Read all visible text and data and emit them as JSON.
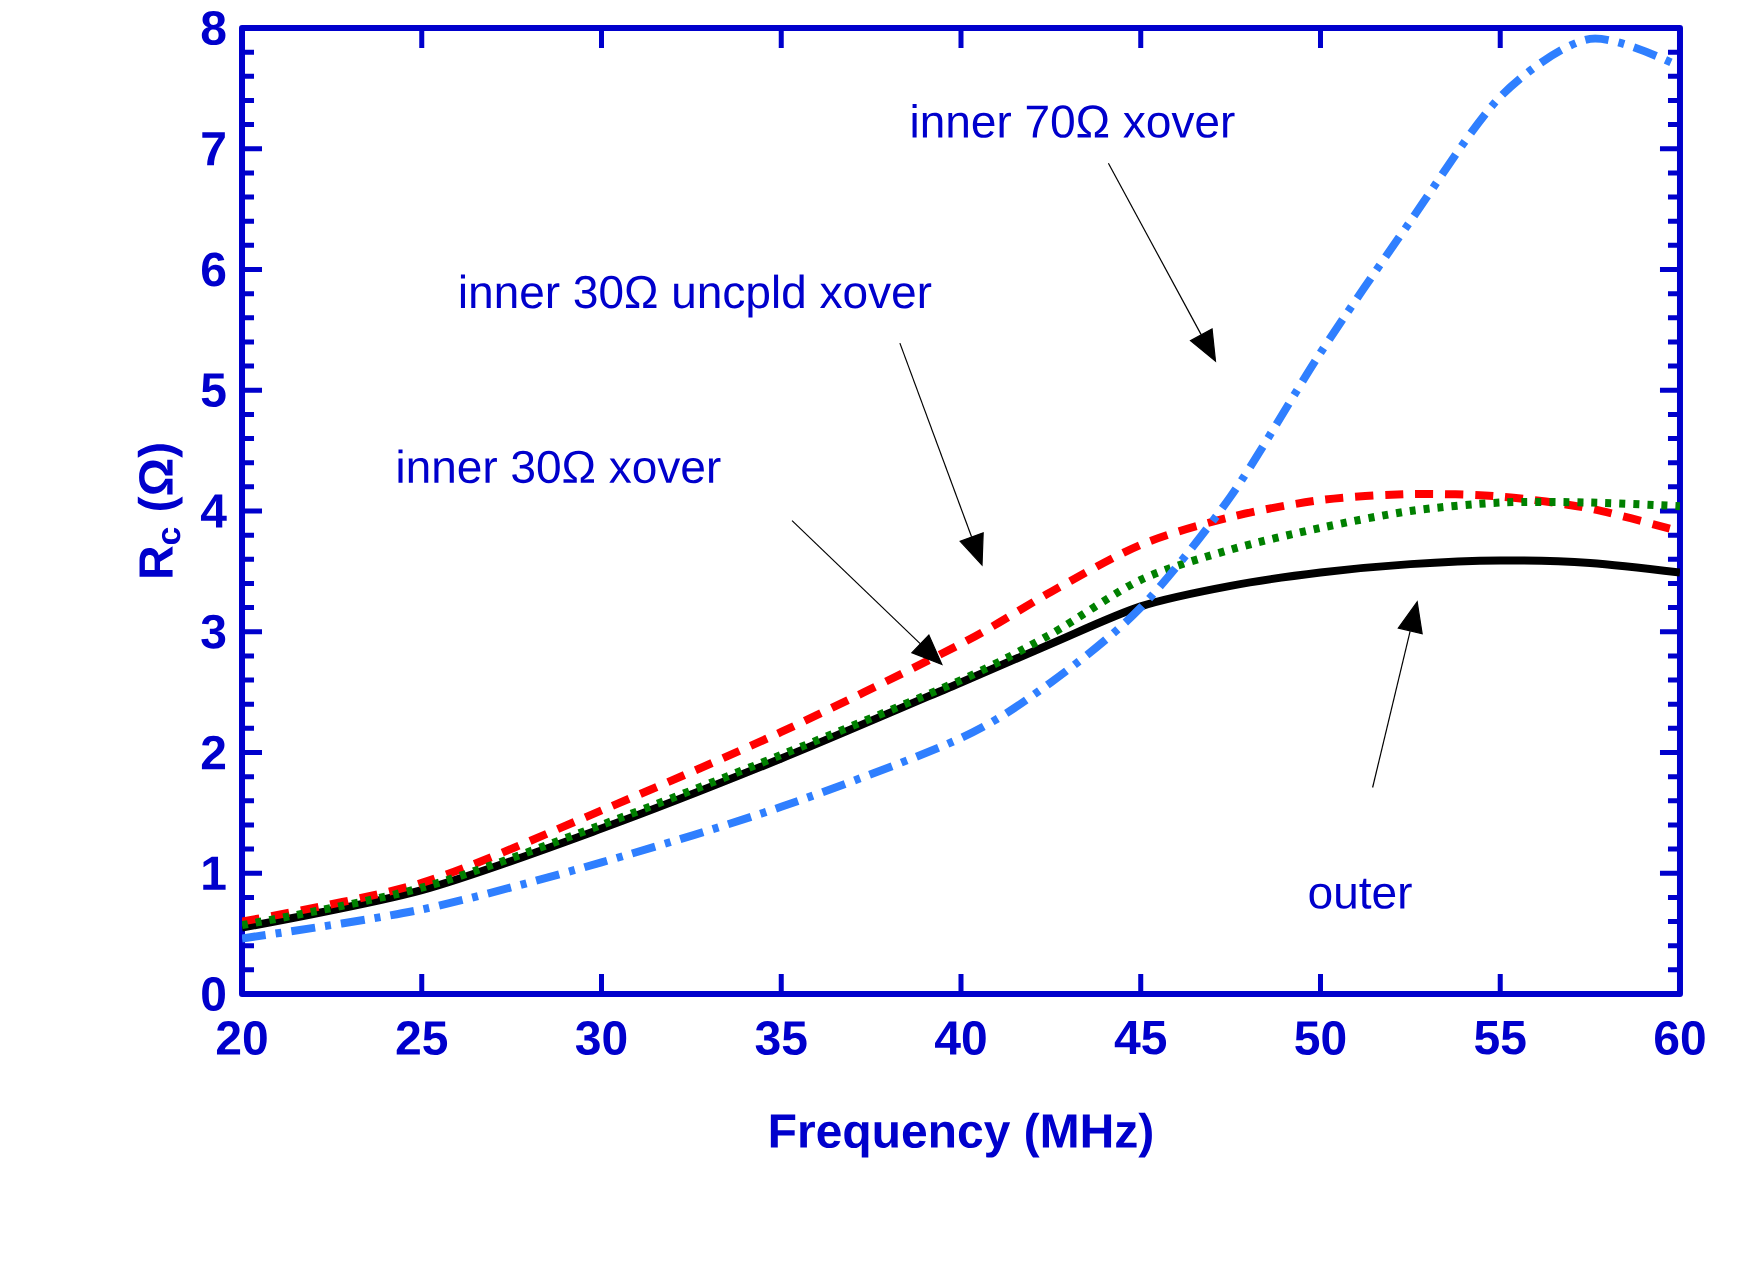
{
  "chart_data": {
    "type": "line",
    "xlabel": "Frequency (MHz)",
    "ylabel": "R$_{c}$ (Ω)",
    "xlim": [
      20,
      60
    ],
    "ylim": [
      0,
      8
    ],
    "xticks": [
      20,
      25,
      30,
      35,
      40,
      45,
      50,
      55,
      60
    ],
    "yticks": [
      0,
      1,
      2,
      3,
      4,
      5,
      6,
      7,
      8
    ],
    "grid": false,
    "marker": "none",
    "x": [
      20,
      25,
      30,
      35,
      40,
      42.5,
      45,
      47.5,
      50,
      52.5,
      55,
      57.5,
      60
    ],
    "series": [
      {
        "color": "#000000",
        "line_style": "solid",
        "values": [
          0.55,
          0.86,
          1.37,
          1.95,
          2.58,
          2.9,
          3.21,
          3.38,
          3.49,
          3.56,
          3.59,
          3.57,
          3.49
        ]
      },
      {
        "color": "#ff0000",
        "line_style": "dashed",
        "values": [
          0.6,
          0.92,
          1.52,
          2.17,
          2.9,
          3.33,
          3.72,
          3.95,
          4.09,
          4.14,
          4.12,
          4.02,
          3.83
        ]
      },
      {
        "color": "#008000",
        "line_style": "dotted",
        "values": [
          0.57,
          0.88,
          1.4,
          1.98,
          2.6,
          2.98,
          3.43,
          3.68,
          3.86,
          4.0,
          4.07,
          4.07,
          4.04
        ]
      },
      {
        "color": "#2f7fff",
        "line_style": "dashdot",
        "values": [
          0.46,
          0.7,
          1.09,
          1.55,
          2.12,
          2.58,
          3.2,
          4.12,
          5.31,
          6.4,
          7.43,
          7.91,
          7.68
        ]
      }
    ],
    "annotations": [
      "inner 70Ω xover",
      "inner 30Ω uncpld xover",
      "inner 30Ω xover",
      "outer"
    ]
  }
}
